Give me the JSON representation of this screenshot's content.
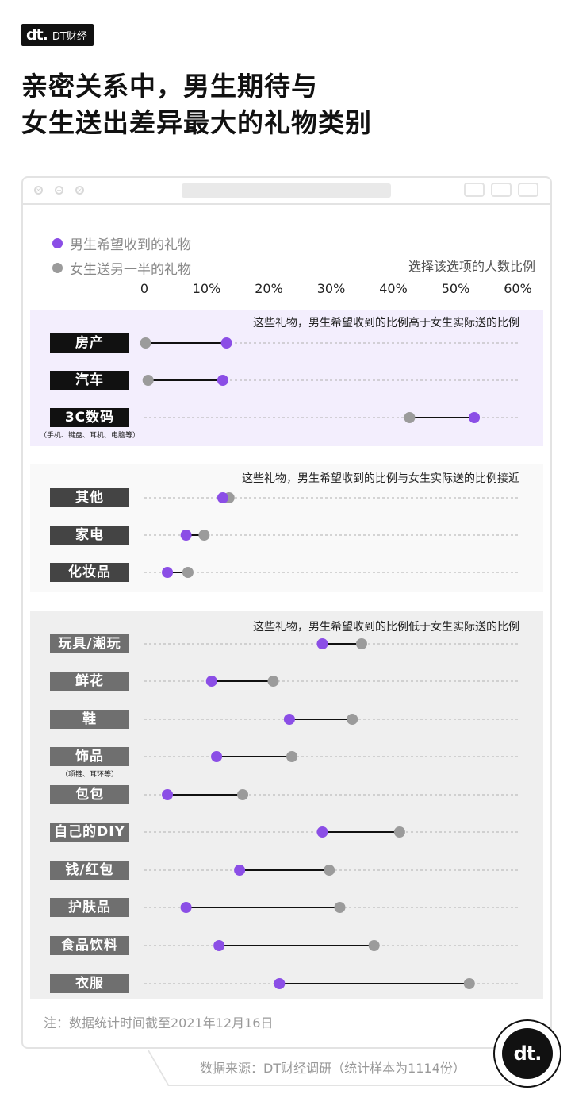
{
  "brand": {
    "logo": "dt.",
    "name": "DT财经"
  },
  "title": {
    "line1": "亲密关系中，男生期待与",
    "line2": "女生送出差异最大的礼物类别"
  },
  "legend": {
    "male": "男生希望收到的礼物",
    "female": "女生送另一半的礼物"
  },
  "unit": "选择该选项的人数比例",
  "colors": {
    "male": "#8b4ee6",
    "female": "#9b9b9b",
    "band1_bg": "#f3eefd",
    "band2_bg": "#f9f9f9",
    "band3_bg": "#efefef",
    "label1": "#111111",
    "label2": "#444444",
    "label3": "#6f6f6f"
  },
  "chart_data": {
    "type": "dumbbell",
    "xlim": [
      0,
      60
    ],
    "ticks": [
      "0",
      "10%",
      "20%",
      "30%",
      "40%",
      "50%",
      "60%"
    ],
    "series_names": [
      "男生希望收到的礼物",
      "女生送另一半的礼物"
    ],
    "groups": [
      {
        "caption": "这些礼物，男生希望收到的比例高于女生实际送的比例",
        "items": [
          {
            "category": "房产",
            "sub": "",
            "male": 13.2,
            "female": 0.2
          },
          {
            "category": "汽车",
            "sub": "",
            "male": 12.6,
            "female": 0.6
          },
          {
            "category": "3C数码",
            "sub": "（手机、键盘、耳机、电脑等）",
            "male": 53.0,
            "female": 42.6
          }
        ]
      },
      {
        "caption": "这些礼物，男生希望收到的比例与女生实际送的比例接近",
        "items": [
          {
            "category": "其他",
            "sub": "",
            "male": 12.6,
            "female": 13.6
          },
          {
            "category": "家电",
            "sub": "",
            "male": 6.7,
            "female": 9.6
          },
          {
            "category": "化妆品",
            "sub": "",
            "male": 3.7,
            "female": 7.0
          }
        ]
      },
      {
        "caption": "这些礼物，男生希望收到的比例低于女生实际送的比例",
        "items": [
          {
            "category": "玩具/潮玩",
            "sub": "",
            "male": 28.6,
            "female": 34.9
          },
          {
            "category": "鲜花",
            "sub": "",
            "male": 10.8,
            "female": 20.7
          },
          {
            "category": "鞋",
            "sub": "",
            "male": 23.3,
            "female": 33.4
          },
          {
            "category": "饰品",
            "sub": "（项链、耳环等）",
            "male": 11.6,
            "female": 23.7
          },
          {
            "category": "包包",
            "sub": "",
            "male": 3.7,
            "female": 15.8
          },
          {
            "category": "自己的DIY",
            "sub": "",
            "male": 28.6,
            "female": 41.0
          },
          {
            "category": "钱/红包",
            "sub": "",
            "male": 15.3,
            "female": 29.7
          },
          {
            "category": "护肤品",
            "sub": "",
            "male": 6.7,
            "female": 31.4
          },
          {
            "category": "食品饮料",
            "sub": "",
            "male": 12.0,
            "female": 36.9
          },
          {
            "category": "衣服",
            "sub": "",
            "male": 21.7,
            "female": 52.2
          }
        ]
      }
    ]
  },
  "note": "注：数据统计时间截至2021年12月16日",
  "source": "数据来源：DT财经调研（统计样本为1114份）"
}
